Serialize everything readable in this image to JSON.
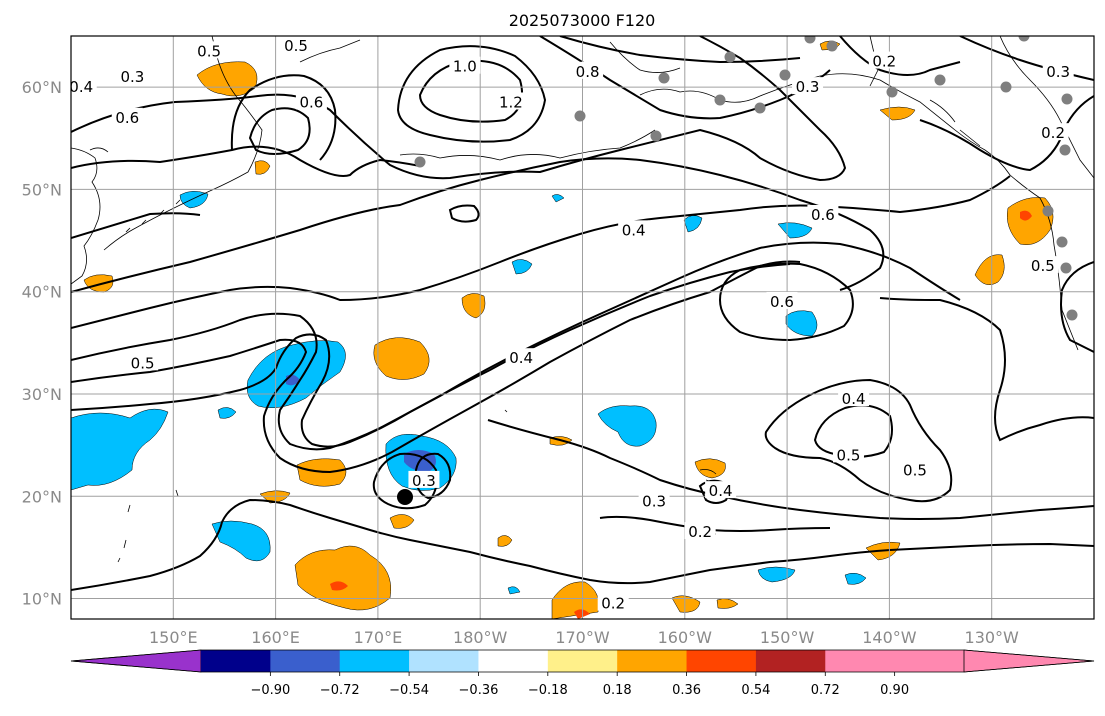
{
  "title": "2025073000 F120",
  "map": {
    "lon_range": [
      140,
      240
    ],
    "lat_range": [
      8,
      65
    ],
    "lat_ticks": [
      {
        "lat": 60,
        "label": "60°N"
      },
      {
        "lat": 50,
        "label": "50°N"
      },
      {
        "lat": 40,
        "label": "40°N"
      },
      {
        "lat": 30,
        "label": "30°N"
      },
      {
        "lat": 20,
        "label": "20°N"
      },
      {
        "lat": 10,
        "label": "10°N"
      }
    ],
    "lon_ticks": [
      {
        "lon": 150,
        "label": "150°E"
      },
      {
        "lon": 160,
        "label": "160°E"
      },
      {
        "lon": 170,
        "label": "170°E"
      },
      {
        "lon": 180,
        "label": "180°W"
      },
      {
        "lon": 190,
        "label": "170°W"
      },
      {
        "lon": 200,
        "label": "160°W"
      },
      {
        "lon": 210,
        "label": "150°W"
      },
      {
        "lon": 220,
        "label": "140°W"
      },
      {
        "lon": 230,
        "label": "130°W"
      }
    ],
    "contour_labels": [
      {
        "text": "0.3",
        "lon": 146.0,
        "lat": 61.0
      },
      {
        "text": "0.4",
        "lon": 141.0,
        "lat": 60.0
      },
      {
        "text": "0.6",
        "lon": 145.5,
        "lat": 57.0
      },
      {
        "text": "0.5",
        "lon": 153.5,
        "lat": 63.5
      },
      {
        "text": "0.5",
        "lon": 162.0,
        "lat": 64.0
      },
      {
        "text": "0.6",
        "lon": 163.5,
        "lat": 58.5
      },
      {
        "text": "1.0",
        "lon": 178.5,
        "lat": 62.0
      },
      {
        "text": "1.2",
        "lon": 183.0,
        "lat": 58.5
      },
      {
        "text": "0.8",
        "lon": 190.5,
        "lat": 61.5
      },
      {
        "text": "0.3",
        "lon": 212.0,
        "lat": 60.0
      },
      {
        "text": "0.2",
        "lon": 219.5,
        "lat": 62.5
      },
      {
        "text": "0.3",
        "lon": 236.5,
        "lat": 61.5
      },
      {
        "text": "0.2",
        "lon": 236.0,
        "lat": 55.5
      },
      {
        "text": "0.6",
        "lon": 213.5,
        "lat": 47.5
      },
      {
        "text": "0.6",
        "lon": 209.5,
        "lat": 39.0
      },
      {
        "text": "0.4",
        "lon": 195.0,
        "lat": 46.0
      },
      {
        "text": "0.5",
        "lon": 235.0,
        "lat": 42.5
      },
      {
        "text": "0.5",
        "lon": 147.0,
        "lat": 33.0
      },
      {
        "text": "0.4",
        "lon": 184.0,
        "lat": 33.5
      },
      {
        "text": "0.4",
        "lon": 216.5,
        "lat": 29.5
      },
      {
        "text": "0.5",
        "lon": 216.0,
        "lat": 24.0
      },
      {
        "text": "0.5",
        "lon": 222.5,
        "lat": 22.5
      },
      {
        "text": "0.3",
        "lon": 174.5,
        "lat": 21.5
      },
      {
        "text": "0.3",
        "lon": 197.0,
        "lat": 19.5
      },
      {
        "text": "0.4",
        "lon": 203.5,
        "lat": 20.5
      },
      {
        "text": "0.2",
        "lon": 201.5,
        "lat": 16.5
      },
      {
        "text": "0.2",
        "lon": 193.0,
        "lat": 9.5
      }
    ],
    "colors": {
      "neg_extreme": "#9932cc",
      "neg_090": "#00008b",
      "neg_072": "#3a5fcd",
      "neg_054": "#00bfff",
      "neg_036": "#b0e2ff",
      "pos_036": "#ffa500",
      "pos_054": "#ff4500",
      "pos_072": "#b22222",
      "pos_090": "#ff88b0",
      "pos_018": "#fff08a",
      "station": "#7f7f7f",
      "grid": "#a0a0a0"
    }
  },
  "colorbar": {
    "ticks": [
      "−0.90",
      "−0.72",
      "−0.54",
      "−0.36",
      "−0.18",
      "0.18",
      "0.36",
      "0.54",
      "0.72",
      "0.90"
    ],
    "colors": [
      "#9932cc",
      "#00008b",
      "#3a5fcd",
      "#00bfff",
      "#b0e2ff",
      "#ffffff",
      "#fff08a",
      "#ffa500",
      "#ff4500",
      "#b22222",
      "#ff88b0",
      "#ff88b0"
    ]
  }
}
